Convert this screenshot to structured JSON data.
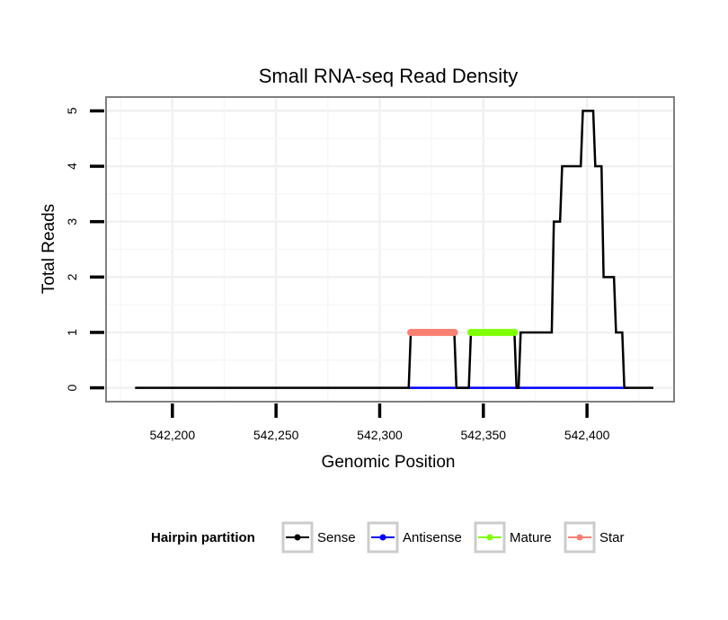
{
  "chart_data": {
    "type": "line",
    "title": "Small RNA-seq Read Density",
    "xlabel": "Genomic Position",
    "ylabel": "Total Reads",
    "xlim": [
      542168,
      542442
    ],
    "ylim": [
      -0.25,
      5.25
    ],
    "x_ticks": [
      {
        "value": 542200,
        "label": "542,200"
      },
      {
        "value": 542250,
        "label": "542,250"
      },
      {
        "value": 542300,
        "label": "542,300"
      },
      {
        "value": 542350,
        "label": "542,350"
      },
      {
        "value": 542400,
        "label": "542,400"
      }
    ],
    "y_ticks": [
      {
        "value": 0,
        "label": "0"
      },
      {
        "value": 1,
        "label": "1"
      },
      {
        "value": 2,
        "label": "2"
      },
      {
        "value": 3,
        "label": "3"
      },
      {
        "value": 4,
        "label": "4"
      },
      {
        "value": 5,
        "label": "5"
      }
    ],
    "grid": true,
    "legend": {
      "title": "Hairpin partition",
      "position": "bottom",
      "entries": [
        {
          "name": "Sense",
          "color": "#000000"
        },
        {
          "name": "Antisense",
          "color": "#0000ff"
        },
        {
          "name": "Mature",
          "color": "#7fff00"
        },
        {
          "name": "Star",
          "color": "#fa8072"
        }
      ]
    },
    "series": [
      {
        "name": "Sense",
        "color": "#000000",
        "style": "step",
        "x": [
          542182,
          542314,
          542315,
          542336,
          542337,
          542343,
          542344,
          542365,
          542366,
          542367,
          542368,
          542383,
          542384,
          542387,
          542388,
          542397,
          542398,
          542403,
          542404,
          542407,
          542408,
          542413,
          542414,
          542417,
          542418,
          542420,
          542421,
          542432
        ],
        "y": [
          0,
          0,
          1,
          1,
          0,
          0,
          1,
          1,
          0,
          0,
          1,
          1,
          3,
          3,
          4,
          4,
          5,
          5,
          4,
          4,
          2,
          2,
          1,
          1,
          0,
          0,
          0,
          0
        ]
      },
      {
        "name": "Antisense",
        "color": "#0000ff",
        "style": "line",
        "x": [
          542314,
          542420
        ],
        "y": [
          0,
          0
        ]
      },
      {
        "name": "Star",
        "color": "#fa8072",
        "style": "points",
        "x": [
          542315,
          542316,
          542317,
          542318,
          542319,
          542320,
          542321,
          542322,
          542323,
          542324,
          542325,
          542326,
          542327,
          542328,
          542329,
          542330,
          542331,
          542332,
          542333,
          542334,
          542335,
          542336
        ],
        "y": [
          1,
          1,
          1,
          1,
          1,
          1,
          1,
          1,
          1,
          1,
          1,
          1,
          1,
          1,
          1,
          1,
          1,
          1,
          1,
          1,
          1,
          1
        ]
      },
      {
        "name": "Mature",
        "color": "#7fff00",
        "style": "points",
        "x": [
          542344,
          542345,
          542346,
          542347,
          542348,
          542349,
          542350,
          542351,
          542352,
          542353,
          542354,
          542355,
          542356,
          542357,
          542358,
          542359,
          542360,
          542361,
          542362,
          542363,
          542364,
          542365
        ],
        "y": [
          1,
          1,
          1,
          1,
          1,
          1,
          1,
          1,
          1,
          1,
          1,
          1,
          1,
          1,
          1,
          1,
          1,
          1,
          1,
          1,
          1,
          1
        ]
      }
    ]
  }
}
